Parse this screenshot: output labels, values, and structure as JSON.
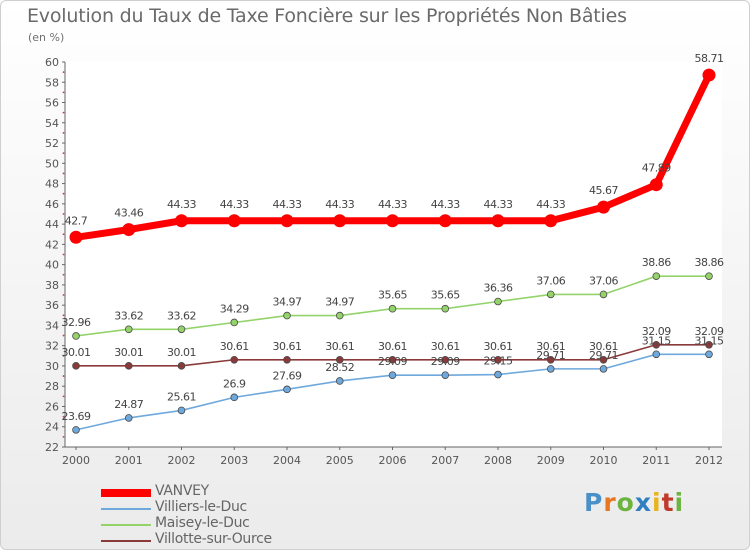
{
  "title": "Evolution du Taux de Taxe Foncière sur les Propriétés Non Bâties",
  "unit_label": "(en %)",
  "logo": {
    "text": "Proxiti",
    "colors": [
      "#4a90c8",
      "#e87722",
      "#6cb33f",
      "#2f7fc1",
      "#e8b41c",
      "#c0392b",
      "#6cb33f"
    ]
  },
  "chart_data": {
    "type": "line",
    "title": "Evolution du Taux de Taxe Foncière sur les Propriétés Non Bâties",
    "ylabel": "(en %)",
    "xlabel": "",
    "ylim": [
      22,
      60
    ],
    "yticks": [
      "22",
      "24",
      "26",
      "28",
      "30",
      "32",
      "34",
      "36",
      "38",
      "40",
      "42",
      "44",
      "46",
      "48",
      "50",
      "52",
      "54",
      "56",
      "58",
      "60"
    ],
    "categories": [
      "2000",
      "2001",
      "2002",
      "2003",
      "2004",
      "2005",
      "2006",
      "2007",
      "2008",
      "2009",
      "2010",
      "2011",
      "2012"
    ],
    "series": [
      {
        "name": "VANVEY",
        "color": "#ff0000",
        "values": [
          42.7,
          43.46,
          44.33,
          44.33,
          44.33,
          44.33,
          44.33,
          44.33,
          44.33,
          44.33,
          45.67,
          47.89,
          58.71
        ],
        "labels": [
          "42.7",
          "43.46",
          "44.33",
          "44.33",
          "44.33",
          "44.33",
          "44.33",
          "44.33",
          "44.33",
          "44.33",
          "45.67",
          "47.89",
          "58.71"
        ]
      },
      {
        "name": "Villiers-le-Duc",
        "color": "#6fa8dc",
        "values": [
          23.69,
          24.87,
          25.61,
          26.9,
          27.69,
          28.52,
          29.09,
          29.09,
          29.15,
          29.71,
          29.71,
          31.15,
          31.15
        ],
        "labels": [
          "23.69",
          "24.87",
          "25.61",
          "26.9",
          "27.69",
          "28.52",
          "29.09",
          "29.09",
          "29.15",
          "29.71",
          "29.71",
          "31.15",
          "31.15"
        ]
      },
      {
        "name": "Maisey-le-Duc",
        "color": "#93d36a",
        "values": [
          32.96,
          33.62,
          33.62,
          34.29,
          34.97,
          34.97,
          35.65,
          35.65,
          36.36,
          37.06,
          37.06,
          38.86,
          38.86
        ],
        "labels": [
          "32.96",
          "33.62",
          "33.62",
          "34.29",
          "34.97",
          "34.97",
          "35.65",
          "35.65",
          "36.36",
          "37.06",
          "37.06",
          "38.86",
          "38.86"
        ]
      },
      {
        "name": "Villotte-sur-Ource",
        "color": "#8b3a3a",
        "values": [
          30.01,
          30.01,
          30.01,
          30.61,
          30.61,
          30.61,
          30.61,
          30.61,
          30.61,
          30.61,
          30.61,
          32.09,
          32.09
        ],
        "labels": [
          "30.01",
          "30.01",
          "30.01",
          "30.61",
          "30.61",
          "30.61",
          "30.61",
          "30.61",
          "30.61",
          "30.61",
          "30.61",
          "32.09",
          "32.09"
        ]
      }
    ],
    "legend_position": "bottom-left",
    "grid": false
  }
}
